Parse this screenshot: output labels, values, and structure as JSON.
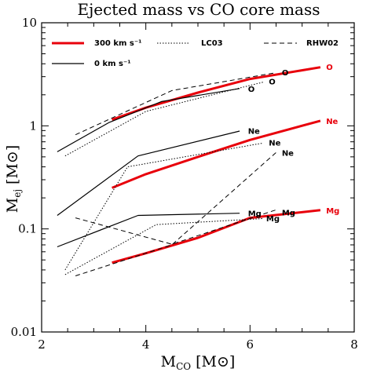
{
  "chart_data": {
    "type": "line",
    "title": "Ejected mass vs CO core mass",
    "xlabel": "M",
    "xlabel_sub": "CO",
    "xlabel_unit": "[M⊙]",
    "ylabel": "M",
    "ylabel_sub": "ej",
    "ylabel_unit": "[M⊙]",
    "xlim": [
      2,
      8
    ],
    "ylim": [
      0.01,
      10
    ],
    "yscale": "log",
    "x_ticks": [
      "2",
      "4",
      "6",
      "8"
    ],
    "y_ticks": [
      "0.01",
      "0.1",
      "1",
      "10"
    ],
    "legend_position": "top",
    "legend": [
      {
        "label": "300 km s⁻¹",
        "style": "thick-red",
        "color": "#e8000b"
      },
      {
        "label": "LC03",
        "style": "dotted",
        "color": "#000000"
      },
      {
        "label": "RHW02",
        "style": "dashed",
        "color": "#000000"
      },
      {
        "label": "0 km s⁻¹",
        "style": "solid",
        "color": "#000000"
      }
    ],
    "series": [
      {
        "style": "thick-red",
        "color": "#e8000b",
        "element": "O",
        "points": [
          [
            3.35,
            1.15
          ],
          [
            4.0,
            1.5
          ],
          [
            5.0,
            2.1
          ],
          [
            6.0,
            2.85
          ],
          [
            7.35,
            3.7
          ]
        ]
      },
      {
        "style": "thick-red",
        "color": "#e8000b",
        "element": "Ne",
        "points": [
          [
            3.35,
            0.25
          ],
          [
            4.0,
            0.34
          ],
          [
            5.0,
            0.5
          ],
          [
            6.0,
            0.73
          ],
          [
            7.35,
            1.12
          ]
        ]
      },
      {
        "style": "thick-red",
        "color": "#e8000b",
        "element": "Mg",
        "points": [
          [
            3.35,
            0.047
          ],
          [
            4.0,
            0.058
          ],
          [
            5.0,
            0.082
          ],
          [
            6.0,
            0.128
          ],
          [
            7.35,
            0.152
          ]
        ]
      },
      {
        "style": "solid",
        "color": "#000000",
        "element": "O",
        "points": [
          [
            2.3,
            0.56
          ],
          [
            3.3,
            1.08
          ],
          [
            4.3,
            1.72
          ],
          [
            5.8,
            2.3
          ]
        ]
      },
      {
        "style": "solid",
        "color": "#000000",
        "element": "Ne",
        "points": [
          [
            2.3,
            0.135
          ],
          [
            3.85,
            0.51
          ],
          [
            5.8,
            0.89
          ]
        ]
      },
      {
        "style": "solid",
        "color": "#000000",
        "element": "Mg",
        "points": [
          [
            2.3,
            0.067
          ],
          [
            3.85,
            0.135
          ],
          [
            5.8,
            0.142
          ]
        ]
      },
      {
        "style": "dotted",
        "color": "#000000",
        "element": "O",
        "points": [
          [
            2.45,
            0.51
          ],
          [
            4.0,
            1.38
          ],
          [
            6.25,
            2.65
          ]
        ]
      },
      {
        "style": "dotted",
        "color": "#000000",
        "element": "Ne",
        "points": [
          [
            2.45,
            0.04
          ],
          [
            3.65,
            0.4
          ],
          [
            6.25,
            0.68
          ]
        ]
      },
      {
        "style": "dotted",
        "color": "#000000",
        "element": "Mg",
        "points": [
          [
            2.45,
            0.036
          ],
          [
            4.2,
            0.11
          ],
          [
            6.25,
            0.126
          ]
        ]
      },
      {
        "style": "dashed",
        "color": "#000000",
        "element": "O",
        "points": [
          [
            2.65,
            0.82
          ],
          [
            4.5,
            2.2
          ],
          [
            6.5,
            3.28
          ]
        ]
      },
      {
        "style": "dashed",
        "color": "#000000",
        "element": "Ne",
        "points": [
          [
            2.65,
            0.035
          ],
          [
            4.5,
            0.07
          ],
          [
            6.5,
            0.55
          ]
        ]
      },
      {
        "style": "dashed",
        "color": "#000000",
        "element": "Mg",
        "points": [
          [
            2.65,
            0.128
          ],
          [
            4.5,
            0.071
          ],
          [
            6.5,
            0.153
          ]
        ]
      }
    ],
    "annotations": [
      {
        "text": "O",
        "x": 7.4,
        "y": 3.75,
        "color": "#e8000b"
      },
      {
        "text": "Ne",
        "x": 7.4,
        "y": 1.12,
        "color": "#e8000b"
      },
      {
        "text": "Mg",
        "x": 7.4,
        "y": 0.152,
        "color": "#e8000b"
      },
      {
        "text": "O",
        "x": 5.9,
        "y": 2.3,
        "color": "#000000"
      },
      {
        "text": "O",
        "x": 6.3,
        "y": 2.7,
        "color": "#000000"
      },
      {
        "text": "O",
        "x": 6.55,
        "y": 3.3,
        "color": "#000000"
      },
      {
        "text": "Ne",
        "x": 5.9,
        "y": 0.9,
        "color": "#000000"
      },
      {
        "text": "Ne",
        "x": 6.3,
        "y": 0.69,
        "color": "#000000"
      },
      {
        "text": "Ne",
        "x": 6.55,
        "y": 0.55,
        "color": "#000000"
      },
      {
        "text": "Mg",
        "x": 5.9,
        "y": 0.143,
        "color": "#000000"
      },
      {
        "text": "Mg",
        "x": 6.25,
        "y": 0.127,
        "color": "#000000"
      },
      {
        "text": "Mg",
        "x": 6.55,
        "y": 0.145,
        "color": "#000000"
      }
    ]
  }
}
